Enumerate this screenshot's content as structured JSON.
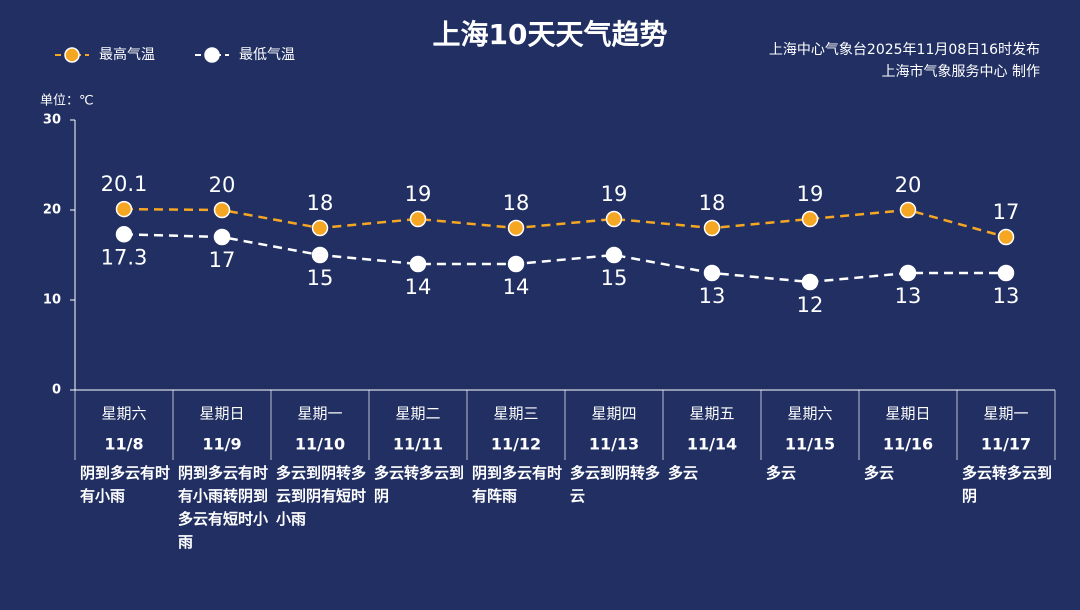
{
  "chart_data": {
    "type": "line",
    "title": "上海10天天气趋势",
    "source": [
      "上海中心气象台2025年11月08日16时发布",
      "上海市气象服务中心  制作"
    ],
    "y_label": "单位：℃",
    "categories": [
      "11/8",
      "11/9",
      "11/10",
      "11/11",
      "11/12",
      "11/13",
      "11/14",
      "11/15",
      "11/16",
      "11/17"
    ],
    "weekdays": [
      "星期六",
      "星期日",
      "星期一",
      "星期二",
      "星期三",
      "星期四",
      "星期五",
      "星期六",
      "星期日",
      "星期一"
    ],
    "weekday_colors": [
      "#f5a623",
      "#f5a623",
      "#ffffff",
      "#ffffff",
      "#ffffff",
      "#ffffff",
      "#ffffff",
      "#f5a623",
      "#f5a623",
      "#ffffff"
    ],
    "weather": [
      "阴到多云有时有小雨",
      "阴到多云有时有小雨转阴到多云有短时小雨",
      "多云到阴转多云到阴有短时小雨",
      "多云转多云到阴",
      "阴到多云有时有阵雨",
      "多云到阴转多云",
      "多云",
      "多云",
      "多云",
      "多云转多云到阴"
    ],
    "series": [
      {
        "name": "最高气温",
        "color": "#f5a623",
        "values": [
          20.1,
          20,
          18,
          19,
          18,
          19,
          18,
          19,
          20,
          17
        ]
      },
      {
        "name": "最低气温",
        "color": "#ffffff",
        "values": [
          17.3,
          17,
          15,
          14,
          14,
          15,
          13,
          12,
          13,
          13
        ]
      }
    ],
    "ylim": [
      0,
      30
    ],
    "yticks": [
      0,
      10,
      20,
      30
    ]
  }
}
